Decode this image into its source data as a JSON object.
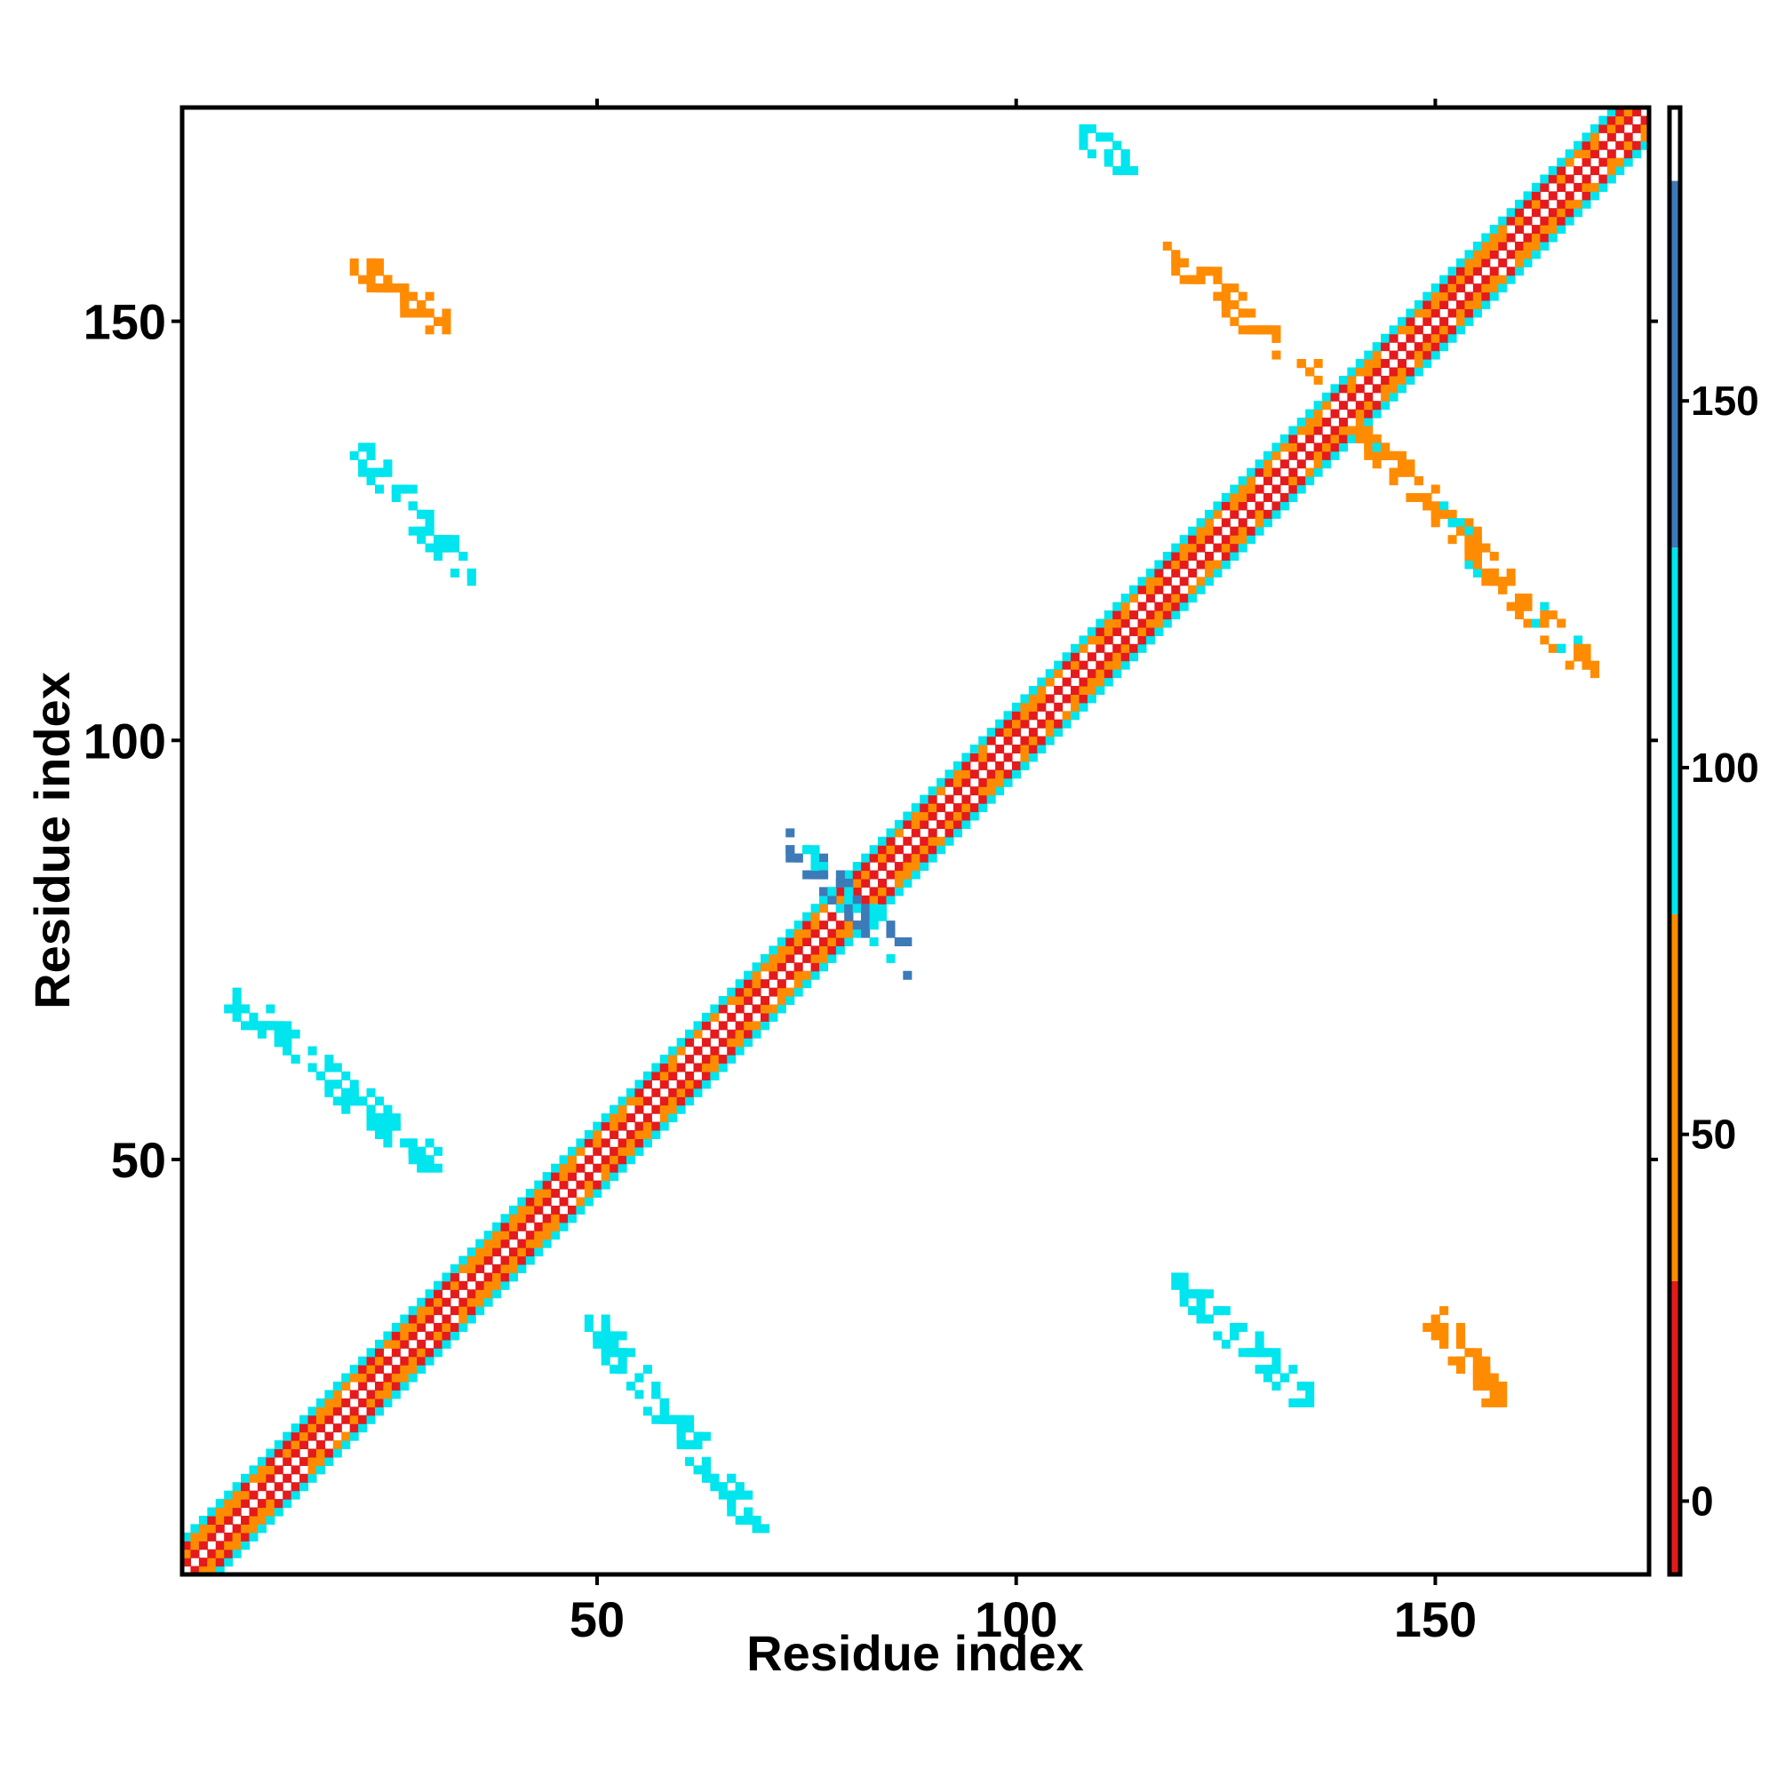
{
  "chart_data": {
    "type": "heatmap",
    "title": "",
    "xlabel": "Residue index",
    "ylabel": "Residue index",
    "xlim": [
      1,
      175
    ],
    "ylim": [
      1,
      175
    ],
    "x_ticks": [
      50,
      100,
      150
    ],
    "y_ticks": [
      50,
      100,
      150
    ],
    "grid": false,
    "colorbar": {
      "range": [
        -10,
        190
      ],
      "ticks": [
        0,
        50,
        100,
        150
      ],
      "bands": [
        {
          "from": -10,
          "to": 30,
          "color": "#e41a1c"
        },
        {
          "from": 30,
          "to": 80,
          "color": "#ff8c00"
        },
        {
          "from": 80,
          "to": 130,
          "color": "#00e5ee"
        },
        {
          "from": 130,
          "to": 180,
          "color": "#3d7ab8"
        },
        {
          "from": 180,
          "to": 190,
          "color": "#ffffff"
        }
      ]
    },
    "diagonal_band": {
      "from": 1,
      "to": 175,
      "half_width": 4
    },
    "contact_clusters": [
      {
        "x_from": 22,
        "x_to": 35,
        "y_from": 120,
        "y_to": 134,
        "value": 95
      },
      {
        "x_from": 120,
        "x_to": 134,
        "y_from": 22,
        "y_to": 35,
        "value": 95
      },
      {
        "x_from": 7,
        "x_to": 30,
        "y_from": 50,
        "y_to": 69,
        "value": 115
      },
      {
        "x_from": 50,
        "x_to": 69,
        "y_from": 7,
        "y_to": 30,
        "value": 115
      },
      {
        "x_from": 22,
        "x_to": 31,
        "y_from": 150,
        "y_to": 157,
        "value": 55
      },
      {
        "x_from": 150,
        "x_to": 157,
        "y_from": 22,
        "y_to": 31,
        "value": 55
      },
      {
        "x_from": 109,
        "x_to": 113,
        "y_from": 169,
        "y_to": 172,
        "value": 95
      },
      {
        "x_from": 119,
        "x_to": 135,
        "y_from": 144,
        "y_to": 158,
        "value": 60
      },
      {
        "x_from": 142,
        "x_to": 168,
        "y_from": 109,
        "y_to": 136,
        "value": 70
      },
      {
        "x_from": 73,
        "x_to": 88,
        "y_from": 73,
        "y_to": 88,
        "value": 135
      }
    ]
  }
}
